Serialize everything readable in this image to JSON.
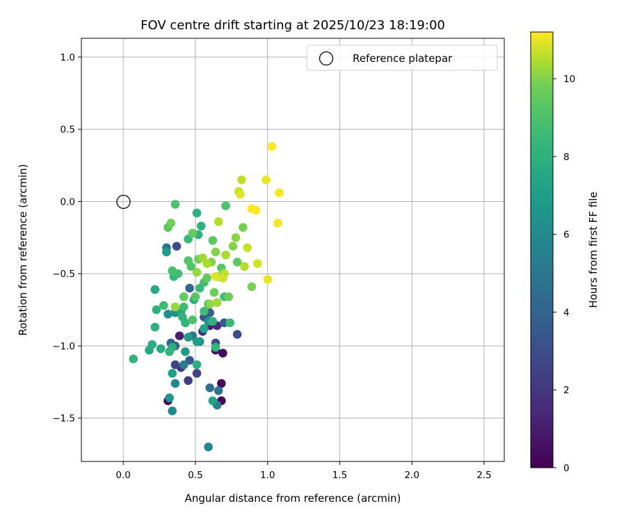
{
  "chart_data": {
    "type": "scatter",
    "title": "FOV centre drift starting at 2025/10/23 18:19:00",
    "xlabel": "Angular distance from reference (arcmin)",
    "ylabel": "Rotation from reference (arcmin)",
    "xlim": [
      -0.29,
      2.64
    ],
    "ylim": [
      -1.8,
      1.13
    ],
    "xticks": [
      0.0,
      0.5,
      1.0,
      1.5,
      2.0,
      2.5
    ],
    "xtick_labels": [
      "0.0",
      "0.5",
      "1.0",
      "1.5",
      "2.0",
      "2.5"
    ],
    "yticks": [
      1.0,
      0.5,
      0.0,
      -0.5,
      -1.0,
      -1.5
    ],
    "ytick_labels": [
      "1.0",
      "0.5",
      "0.0",
      "−0.5",
      "−1.0",
      "−1.5"
    ],
    "grid": true,
    "legend": {
      "position": "top-right",
      "entries": [
        "Reference platepar"
      ]
    },
    "reference_point": {
      "x": 0.0,
      "y": 0.0
    },
    "colorbar": {
      "label": "Hours from first FF file",
      "min": 0,
      "max": 11.2,
      "ticks": [
        0,
        2,
        4,
        6,
        8,
        10
      ],
      "tick_labels": [
        "0",
        "2",
        "4",
        "6",
        "8",
        "10"
      ],
      "colormap": "viridis"
    },
    "points": [
      [
        0.31,
        -1.38,
        0.2
      ],
      [
        0.69,
        -1.05,
        0.3
      ],
      [
        0.68,
        -1.26,
        0.3
      ],
      [
        0.68,
        -1.38,
        0.2
      ],
      [
        0.64,
        -1.03,
        0.5
      ],
      [
        0.39,
        -0.93,
        1.0
      ],
      [
        0.6,
        -0.86,
        1.2
      ],
      [
        0.65,
        -0.86,
        1.5
      ],
      [
        0.55,
        -0.9,
        1.8
      ],
      [
        0.4,
        -1.15,
        2.0
      ],
      [
        0.45,
        -1.24,
        2.2
      ],
      [
        0.51,
        -1.19,
        2.5
      ],
      [
        0.36,
        -1.13,
        2.6
      ],
      [
        0.64,
        -0.98,
        2.8
      ],
      [
        0.79,
        -0.92,
        3.0
      ],
      [
        0.37,
        -0.31,
        3.0
      ],
      [
        0.56,
        -0.8,
        3.3
      ],
      [
        0.46,
        -1.1,
        3.5
      ],
      [
        0.7,
        -0.84,
        3.6
      ],
      [
        0.6,
        -0.77,
        3.8
      ],
      [
        0.36,
        -1.0,
        4.0
      ],
      [
        0.46,
        -0.6,
        4.2
      ],
      [
        0.33,
        -0.98,
        4.2
      ],
      [
        0.6,
        -1.29,
        4.5
      ],
      [
        0.66,
        -1.31,
        4.8
      ],
      [
        0.3,
        -0.32,
        4.8
      ],
      [
        0.48,
        -0.93,
        5.0
      ],
      [
        0.42,
        -1.13,
        5.2
      ],
      [
        0.65,
        -1.41,
        5.5
      ],
      [
        0.59,
        -1.7,
        5.8
      ],
      [
        0.34,
        -1.45,
        5.9
      ],
      [
        0.36,
        -1.26,
        6.0
      ],
      [
        0.31,
        -0.78,
        6.2
      ],
      [
        0.53,
        -0.97,
        6.3
      ],
      [
        0.36,
        -0.77,
        6.4
      ],
      [
        0.59,
        -0.83,
        6.5
      ],
      [
        0.32,
        -1.36,
        6.6
      ],
      [
        0.43,
        -1.04,
        6.8
      ],
      [
        0.45,
        -0.94,
        6.8
      ],
      [
        0.34,
        -1.19,
        7.0
      ],
      [
        0.3,
        -0.35,
        7.0
      ],
      [
        0.51,
        -0.97,
        7.0
      ],
      [
        0.56,
        -0.88,
        7.2
      ],
      [
        0.62,
        -1.38,
        7.3
      ],
      [
        0.4,
        -0.76,
        7.4
      ],
      [
        0.22,
        -0.61,
        7.5
      ],
      [
        0.18,
        -1.03,
        7.6
      ],
      [
        0.26,
        -1.02,
        7.6
      ],
      [
        0.49,
        -0.68,
        7.6
      ],
      [
        0.34,
        -1.01,
        7.8
      ],
      [
        0.51,
        -1.13,
        7.8
      ],
      [
        0.2,
        -0.99,
        7.9
      ],
      [
        0.23,
        -0.75,
        8.0
      ],
      [
        0.22,
        -0.87,
        8.0
      ],
      [
        0.52,
        -0.23,
        8.0
      ],
      [
        0.51,
        -0.08,
        8.0
      ],
      [
        0.54,
        -0.17,
        8.1
      ],
      [
        0.62,
        -0.83,
        8.1
      ],
      [
        0.43,
        -0.84,
        8.2
      ],
      [
        0.64,
        -1.01,
        8.2
      ],
      [
        0.32,
        -1.04,
        8.3
      ],
      [
        0.07,
        -1.09,
        8.3
      ],
      [
        0.41,
        -0.8,
        8.3
      ],
      [
        0.35,
        -0.52,
        8.4
      ],
      [
        0.45,
        -0.26,
        8.4
      ],
      [
        0.53,
        -0.6,
        8.5
      ],
      [
        0.74,
        -0.84,
        8.5
      ],
      [
        0.28,
        -0.72,
        8.6
      ],
      [
        0.42,
        -0.73,
        8.6
      ],
      [
        0.59,
        -0.71,
        8.6
      ],
      [
        0.56,
        -0.76,
        8.7
      ],
      [
        0.38,
        -0.5,
        8.7
      ],
      [
        0.7,
        -0.66,
        8.8
      ],
      [
        0.56,
        -0.56,
        8.8
      ],
      [
        0.34,
        -0.48,
        8.9
      ],
      [
        0.48,
        -0.82,
        9.0
      ],
      [
        0.36,
        -0.02,
        9.0
      ],
      [
        0.71,
        -0.03,
        9.0
      ],
      [
        0.45,
        -0.41,
        9.1
      ],
      [
        0.47,
        -0.45,
        9.2
      ],
      [
        0.5,
        -0.66,
        9.2
      ],
      [
        0.62,
        -0.27,
        9.3
      ],
      [
        0.68,
        -0.46,
        9.3
      ],
      [
        0.79,
        -0.42,
        9.4
      ],
      [
        0.31,
        -0.18,
        9.4
      ],
      [
        0.42,
        -0.66,
        9.5
      ],
      [
        0.58,
        -0.53,
        9.5
      ],
      [
        0.48,
        -0.22,
        9.6
      ],
      [
        0.66,
        -0.52,
        9.6
      ],
      [
        0.73,
        -0.66,
        9.7
      ],
      [
        0.63,
        -0.63,
        9.7
      ],
      [
        0.33,
        -0.15,
        9.8
      ],
      [
        0.52,
        -0.4,
        9.8
      ],
      [
        0.89,
        -0.59,
        9.9
      ],
      [
        0.83,
        -0.18,
        9.9
      ],
      [
        0.76,
        -0.31,
        10.0
      ],
      [
        0.61,
        -0.42,
        10.0
      ],
      [
        0.64,
        -0.35,
        10.0
      ],
      [
        0.6,
        -0.71,
        10.1
      ],
      [
        0.78,
        -0.25,
        10.1
      ],
      [
        0.36,
        -0.73,
        10.2
      ],
      [
        0.51,
        -0.49,
        10.2
      ],
      [
        0.65,
        -0.7,
        10.3
      ],
      [
        0.55,
        -0.39,
        10.3
      ],
      [
        0.71,
        -0.37,
        10.4
      ],
      [
        0.58,
        -0.43,
        10.4
      ],
      [
        0.84,
        -0.45,
        10.5
      ],
      [
        0.66,
        -0.14,
        10.5
      ],
      [
        0.82,
        0.15,
        10.6
      ],
      [
        0.7,
        -0.5,
        10.6
      ],
      [
        0.8,
        0.07,
        10.7
      ],
      [
        0.86,
        -0.32,
        10.7
      ],
      [
        0.93,
        -0.43,
        10.8
      ],
      [
        0.69,
        -0.53,
        10.8
      ],
      [
        0.64,
        -0.52,
        10.9
      ],
      [
        0.81,
        0.05,
        10.9
      ],
      [
        1.0,
        -0.54,
        11.0
      ],
      [
        0.99,
        0.15,
        11.0
      ],
      [
        1.07,
        -0.15,
        11.1
      ],
      [
        1.08,
        0.06,
        11.1
      ],
      [
        1.03,
        0.38,
        11.2
      ],
      [
        0.92,
        -0.06,
        11.2
      ],
      [
        0.89,
        -0.05,
        11.2
      ]
    ]
  }
}
